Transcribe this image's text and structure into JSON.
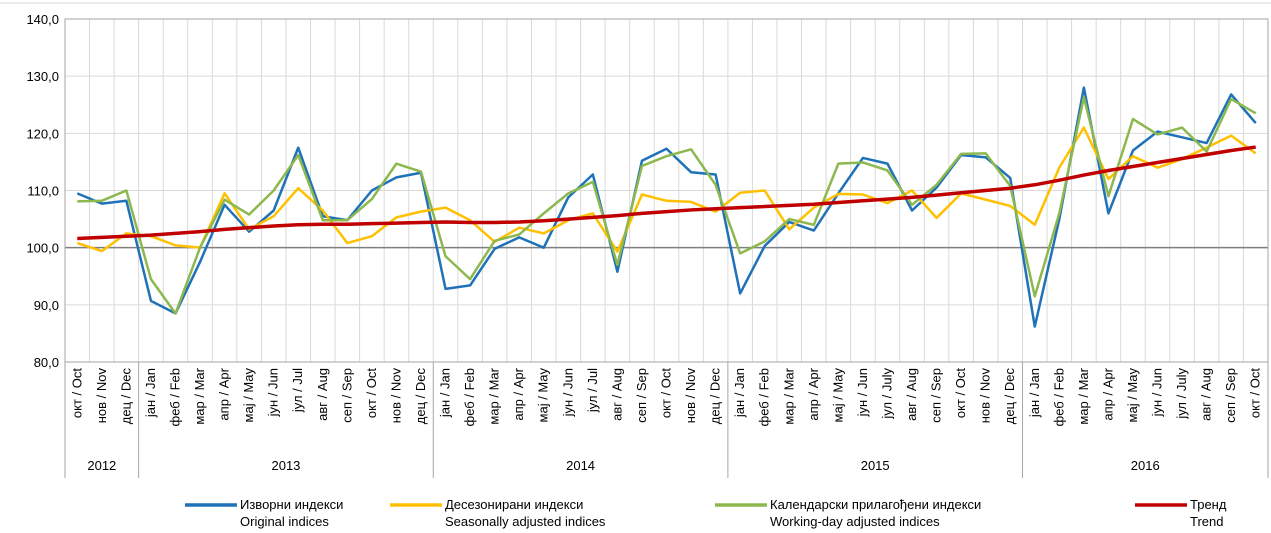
{
  "chart_data": {
    "type": "line",
    "categories": [
      "окт / Oct",
      "нов / Nov",
      "дец / Dec",
      "јан / Jan",
      "феб / Feb",
      "мар / Mar",
      "апр / Apr",
      "мај / May",
      "јун / Jun",
      "јул / Jul",
      "авг / Aug",
      "сеп / Sep",
      "окт / Oct",
      "нов / Nov",
      "дец / Dec",
      "јан / Jan",
      "феб / Feb",
      "мар / Mar",
      "апр / Apr",
      "мај / May",
      "јун / Jun",
      "јул / Jul",
      "авг / Aug",
      "сеп / Sep",
      "окт / Oct",
      "нов / Nov",
      "дец / Dec",
      "јан / Jan",
      "феб / Feb",
      "мар / Mar",
      "апр / Apr",
      "мај / May",
      "јун / Jun",
      "јул / July",
      "авг / Aug",
      "сеп / Sep",
      "окт / Oct",
      "нов / Nov",
      "дец / Dec",
      "јан / Jan",
      "феб / Feb",
      "мар / Mar",
      "апр / Apr",
      "мај / May",
      "јун / Jun",
      "јул / July",
      "авг / Aug",
      "сеп / Sep",
      "окт / Oct"
    ],
    "year_groups": [
      {
        "label": "2012",
        "span": 3
      },
      {
        "label": "2013",
        "span": 12
      },
      {
        "label": "2014",
        "span": 12
      },
      {
        "label": "2015",
        "span": 12
      },
      {
        "label": "2016",
        "span": 10
      }
    ],
    "ylim": [
      80,
      140
    ],
    "yticks": [
      {
        "value": 80,
        "label": "80,0"
      },
      {
        "value": 90,
        "label": "90,0"
      },
      {
        "value": 100,
        "label": "100,0"
      },
      {
        "value": 110,
        "label": "110,0"
      },
      {
        "value": 120,
        "label": "120,0"
      },
      {
        "value": 130,
        "label": "130,0"
      },
      {
        "value": 140,
        "label": "140,0"
      }
    ],
    "grid": true,
    "highlight_y": 100,
    "series": [
      {
        "name": "Изворни индекси",
        "name_en": "Original indices",
        "color": "#1f72b8",
        "values": [
          109.5,
          107.7,
          108.2,
          90.7,
          88.5,
          97.5,
          107.5,
          102.8,
          106.5,
          117.5,
          105.5,
          104.8,
          110,
          112.3,
          113.1,
          92.8,
          93.4,
          99.8,
          101.8,
          100,
          108.8,
          112.8,
          95.8,
          115.2,
          117.3,
          113.2,
          112.8,
          92,
          100.3,
          104.5,
          103,
          109.5,
          115.7,
          114.7,
          106.5,
          110.5,
          116.2,
          115.8,
          112.2,
          86.2,
          105,
          128,
          106,
          117,
          120.3,
          119.3,
          118.3,
          126.8,
          121.8
        ]
      },
      {
        "name": "Десезонирани индекси",
        "name_en": "Seasonally adjusted indices",
        "color": "#ffc000",
        "values": [
          100.8,
          99.4,
          102.5,
          102,
          100.4,
          100,
          109.5,
          103.2,
          105.5,
          110.4,
          106.5,
          100.8,
          102,
          105.3,
          106.3,
          107,
          104.8,
          101,
          103.5,
          102.5,
          104.8,
          106,
          99.3,
          109.3,
          108.2,
          108,
          106.3,
          109.6,
          110,
          103.2,
          107,
          109.4,
          109.3,
          107.8,
          110,
          105.2,
          109.5,
          108.4,
          107.3,
          104,
          114,
          121,
          112,
          116,
          114,
          115.5,
          117.5,
          119.6,
          116.5
        ]
      },
      {
        "name": "Календарски прилагођени индекси",
        "name_en": "Working-day adjusted indices",
        "color": "#8db84e",
        "values": [
          108.1,
          108.2,
          110,
          94.5,
          88.5,
          100,
          108.4,
          105.8,
          110,
          116.2,
          104.8,
          104.8,
          108.5,
          114.7,
          113.3,
          98.5,
          94.5,
          101.2,
          102.3,
          106,
          109.5,
          111.5,
          97,
          114.3,
          116,
          117.2,
          111,
          99,
          101.1,
          105,
          104,
          114.7,
          114.9,
          113.5,
          107.5,
          111,
          116.4,
          116.5,
          110.8,
          91.5,
          106,
          126.3,
          109,
          122.5,
          119.8,
          121,
          116.8,
          126,
          123.5
        ]
      },
      {
        "name": "Тренд",
        "name_en": "Trend",
        "color": "#c00000",
        "values": [
          101.6,
          101.8,
          102,
          102.2,
          102.5,
          102.8,
          103.2,
          103.5,
          103.8,
          104,
          104.1,
          104.1,
          104.2,
          104.3,
          104.4,
          104.5,
          104.4,
          104.4,
          104.5,
          104.7,
          105,
          105.3,
          105.6,
          106,
          106.3,
          106.6,
          106.8,
          107,
          107.2,
          107.4,
          107.6,
          107.9,
          108.2,
          108.5,
          108.8,
          109.2,
          109.6,
          110,
          110.4,
          111,
          111.8,
          112.7,
          113.5,
          114.2,
          114.9,
          115.6,
          116.3,
          117,
          117.6
        ]
      }
    ]
  }
}
